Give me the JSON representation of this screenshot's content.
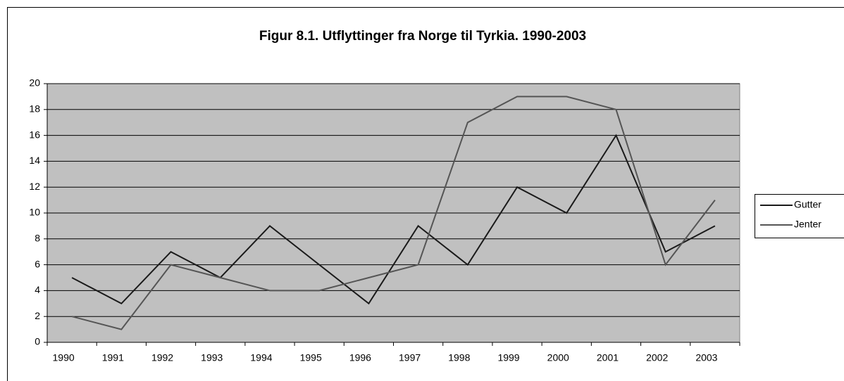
{
  "chart_data": {
    "type": "line",
    "title": "Figur 8.1. Utflyttinger fra Norge til Tyrkia. 1990-2003",
    "categories": [
      "1990",
      "1991",
      "1992",
      "1993",
      "1994",
      "1995",
      "1996",
      "1997",
      "1998",
      "1999",
      "2000",
      "2001",
      "2002",
      "2003"
    ],
    "series": [
      {
        "name": "Gutter",
        "color": "#1a1a1a",
        "values": [
          5,
          3,
          7,
          5,
          9,
          6,
          3,
          9,
          6,
          12,
          10,
          16,
          7,
          9
        ]
      },
      {
        "name": "Jenter",
        "color": "#555555",
        "values": [
          2,
          1,
          6,
          5,
          4,
          4,
          5,
          6,
          17,
          19,
          19,
          18,
          6,
          11
        ]
      }
    ],
    "ylim": [
      0,
      20
    ],
    "yticks": [
      0,
      2,
      4,
      6,
      8,
      10,
      12,
      14,
      16,
      18,
      20
    ],
    "grid": true,
    "plot_background": "#c0c0c0",
    "legend": "right"
  }
}
